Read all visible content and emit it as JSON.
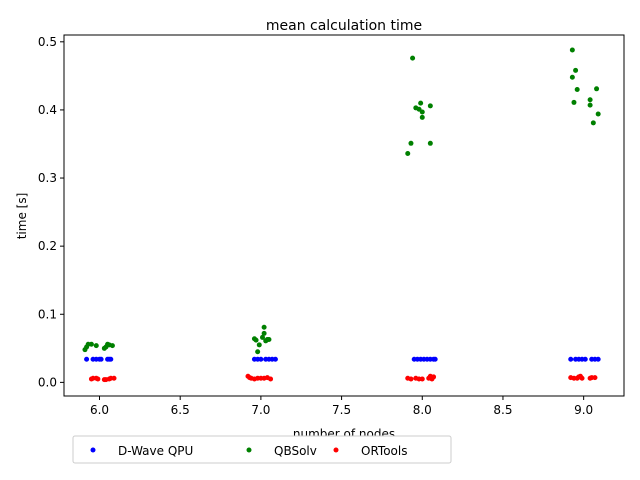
{
  "chart_data": {
    "type": "scatter",
    "title": "mean calculation time",
    "xlabel": "number of nodes",
    "ylabel": "time [s]",
    "xlim": [
      5.78,
      9.25
    ],
    "ylim": [
      -0.02,
      0.51
    ],
    "xticks": [
      6.0,
      6.5,
      7.0,
      7.5,
      8.0,
      8.5,
      9.0
    ],
    "xtick_labels": [
      "6.0",
      "6.5",
      "7.0",
      "7.5",
      "8.0",
      "8.5",
      "9.0"
    ],
    "yticks": [
      0.0,
      0.1,
      0.2,
      0.3,
      0.4,
      0.5
    ],
    "ytick_labels": [
      "0.0",
      "0.1",
      "0.2",
      "0.3",
      "0.4",
      "0.5"
    ],
    "grid": false,
    "legend_position": "bottom, below axes, horizontal",
    "series": [
      {
        "name": "D-Wave QPU",
        "color": "#0000ff",
        "points": [
          [
            5.92,
            0.034
          ],
          [
            5.96,
            0.034
          ],
          [
            5.98,
            0.034
          ],
          [
            6.0,
            0.034
          ],
          [
            6.01,
            0.034
          ],
          [
            6.05,
            0.034
          ],
          [
            6.06,
            0.034
          ],
          [
            6.07,
            0.034
          ],
          [
            6.96,
            0.034
          ],
          [
            6.98,
            0.034
          ],
          [
            7.0,
            0.034
          ],
          [
            7.03,
            0.034
          ],
          [
            7.05,
            0.034
          ],
          [
            7.07,
            0.034
          ],
          [
            7.09,
            0.034
          ],
          [
            7.95,
            0.034
          ],
          [
            7.97,
            0.034
          ],
          [
            7.99,
            0.034
          ],
          [
            8.01,
            0.034
          ],
          [
            8.03,
            0.034
          ],
          [
            8.05,
            0.034
          ],
          [
            8.07,
            0.034
          ],
          [
            8.08,
            0.034
          ],
          [
            8.92,
            0.034
          ],
          [
            8.95,
            0.034
          ],
          [
            8.97,
            0.034
          ],
          [
            8.99,
            0.034
          ],
          [
            9.01,
            0.034
          ],
          [
            9.05,
            0.034
          ],
          [
            9.07,
            0.034
          ],
          [
            9.09,
            0.034
          ]
        ]
      },
      {
        "name": "QBSolv",
        "color": "#008000",
        "points": [
          [
            5.91,
            0.048
          ],
          [
            5.92,
            0.052
          ],
          [
            5.93,
            0.056
          ],
          [
            5.95,
            0.056
          ],
          [
            5.98,
            0.054
          ],
          [
            6.03,
            0.05
          ],
          [
            6.04,
            0.052
          ],
          [
            6.05,
            0.056
          ],
          [
            6.06,
            0.055
          ],
          [
            6.08,
            0.054
          ],
          [
            6.96,
            0.064
          ],
          [
            6.97,
            0.062
          ],
          [
            6.98,
            0.045
          ],
          [
            6.99,
            0.055
          ],
          [
            7.01,
            0.066
          ],
          [
            7.02,
            0.081
          ],
          [
            7.02,
            0.072
          ],
          [
            7.03,
            0.061
          ],
          [
            7.04,
            0.063
          ],
          [
            7.05,
            0.063
          ],
          [
            7.91,
            0.336
          ],
          [
            7.93,
            0.351
          ],
          [
            7.94,
            0.476
          ],
          [
            7.96,
            0.403
          ],
          [
            7.98,
            0.401
          ],
          [
            7.99,
            0.41
          ],
          [
            8.0,
            0.389
          ],
          [
            8.0,
            0.397
          ],
          [
            8.05,
            0.406
          ],
          [
            8.05,
            0.351
          ],
          [
            8.93,
            0.488
          ],
          [
            8.93,
            0.448
          ],
          [
            8.94,
            0.411
          ],
          [
            8.95,
            0.458
          ],
          [
            8.96,
            0.43
          ],
          [
            9.04,
            0.415
          ],
          [
            9.04,
            0.407
          ],
          [
            9.06,
            0.381
          ],
          [
            9.08,
            0.431
          ],
          [
            9.09,
            0.394
          ]
        ]
      },
      {
        "name": "ORTools",
        "color": "#ff0000",
        "points": [
          [
            5.95,
            0.005
          ],
          [
            5.96,
            0.006
          ],
          [
            5.98,
            0.006
          ],
          [
            5.99,
            0.005
          ],
          [
            6.03,
            0.004
          ],
          [
            6.04,
            0.004
          ],
          [
            6.06,
            0.005
          ],
          [
            6.07,
            0.006
          ],
          [
            6.09,
            0.006
          ],
          [
            6.92,
            0.009
          ],
          [
            6.93,
            0.007
          ],
          [
            6.94,
            0.006
          ],
          [
            6.96,
            0.005
          ],
          [
            6.98,
            0.006
          ],
          [
            7.0,
            0.006
          ],
          [
            7.02,
            0.006
          ],
          [
            7.04,
            0.007
          ],
          [
            7.06,
            0.005
          ],
          [
            7.91,
            0.006
          ],
          [
            7.93,
            0.005
          ],
          [
            7.96,
            0.006
          ],
          [
            7.98,
            0.005
          ],
          [
            8.0,
            0.005
          ],
          [
            8.04,
            0.006
          ],
          [
            8.05,
            0.009
          ],
          [
            8.06,
            0.005
          ],
          [
            8.07,
            0.008
          ],
          [
            8.92,
            0.007
          ],
          [
            8.94,
            0.006
          ],
          [
            8.96,
            0.006
          ],
          [
            8.97,
            0.008
          ],
          [
            8.98,
            0.009
          ],
          [
            8.99,
            0.006
          ],
          [
            9.04,
            0.006
          ],
          [
            9.05,
            0.007
          ],
          [
            9.07,
            0.007
          ]
        ]
      }
    ]
  }
}
